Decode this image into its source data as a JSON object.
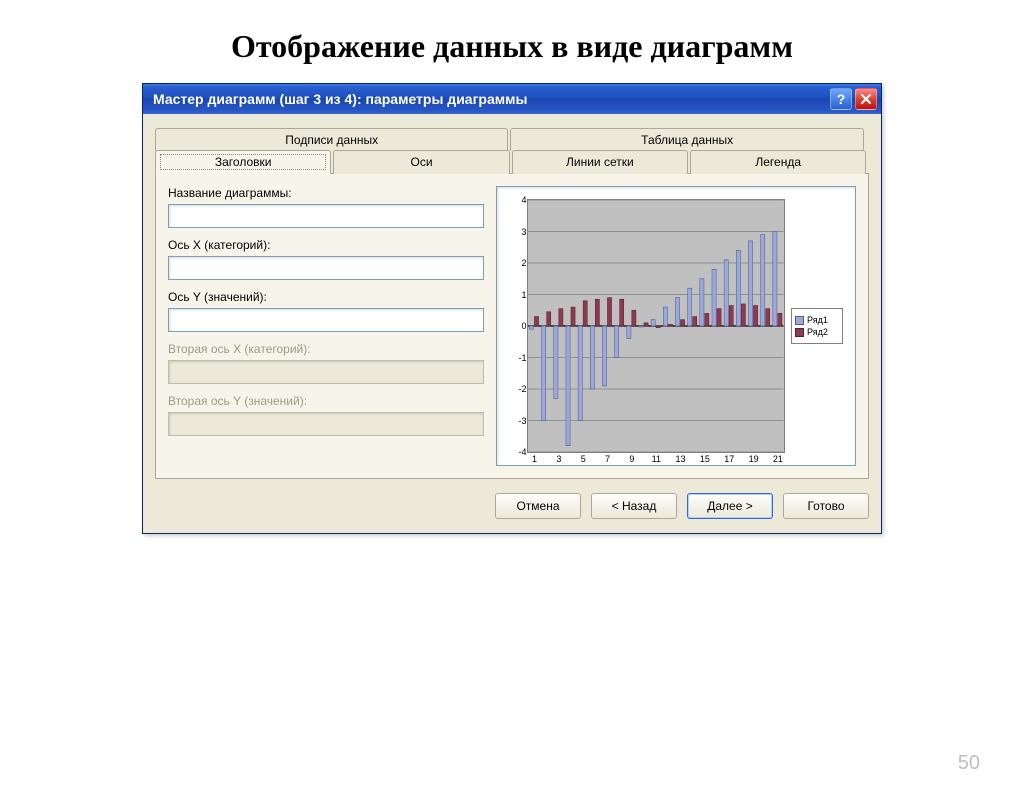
{
  "page_title": "Отображение данных в виде диаграмм",
  "slide_number": "50",
  "window": {
    "title": "Мастер диаграмм (шаг 3 из 4): параметры диаграммы"
  },
  "tabs_top": [
    {
      "label": "Подписи данных"
    },
    {
      "label": "Таблица данных"
    }
  ],
  "tabs_bottom": [
    {
      "label": "Заголовки",
      "active": true
    },
    {
      "label": "Оси"
    },
    {
      "label": "Линии сетки"
    },
    {
      "label": "Легенда"
    }
  ],
  "fields": {
    "chart_title": {
      "label": "Название диаграммы:",
      "value": ""
    },
    "x_axis": {
      "label": "Ось X (категорий):",
      "value": ""
    },
    "y_axis": {
      "label": "Ось Y (значений):",
      "value": ""
    },
    "x2_axis": {
      "label": "Вторая ось X (категорий):",
      "value": "",
      "disabled": true
    },
    "y2_axis": {
      "label": "Вторая ось Y (значений):",
      "value": "",
      "disabled": true
    }
  },
  "buttons": {
    "cancel": "Отмена",
    "back": "< Назад",
    "next": "Далее >",
    "finish": "Готово"
  },
  "chart": {
    "type": "bar",
    "ylim": [
      -4,
      4
    ],
    "ytick_step": 1,
    "x_count": 21,
    "x_ticks": [
      1,
      3,
      5,
      7,
      9,
      11,
      13,
      15,
      17,
      19,
      21
    ],
    "series": [
      {
        "name": "Ряд1",
        "color": "#9ba8d8",
        "border": "#4a5a9a",
        "values": [
          -0.1,
          -3.0,
          -2.3,
          -3.8,
          -3.0,
          -2.0,
          -1.9,
          -1.0,
          -0.4,
          0.0,
          0.2,
          0.6,
          0.9,
          1.2,
          1.5,
          1.8,
          2.1,
          2.4,
          2.7,
          2.9,
          3.0
        ]
      },
      {
        "name": "Ряд2",
        "color": "#8b3a52",
        "border": "#5a2030",
        "values": [
          0.3,
          0.45,
          0.55,
          0.6,
          0.8,
          0.85,
          0.9,
          0.85,
          0.5,
          0.1,
          -0.05,
          0.05,
          0.2,
          0.3,
          0.4,
          0.55,
          0.65,
          0.7,
          0.65,
          0.55,
          0.4
        ]
      }
    ],
    "plot_bg": "#c0c0c0",
    "grid_color": "#808080",
    "legend_bg": "#ffffff"
  }
}
